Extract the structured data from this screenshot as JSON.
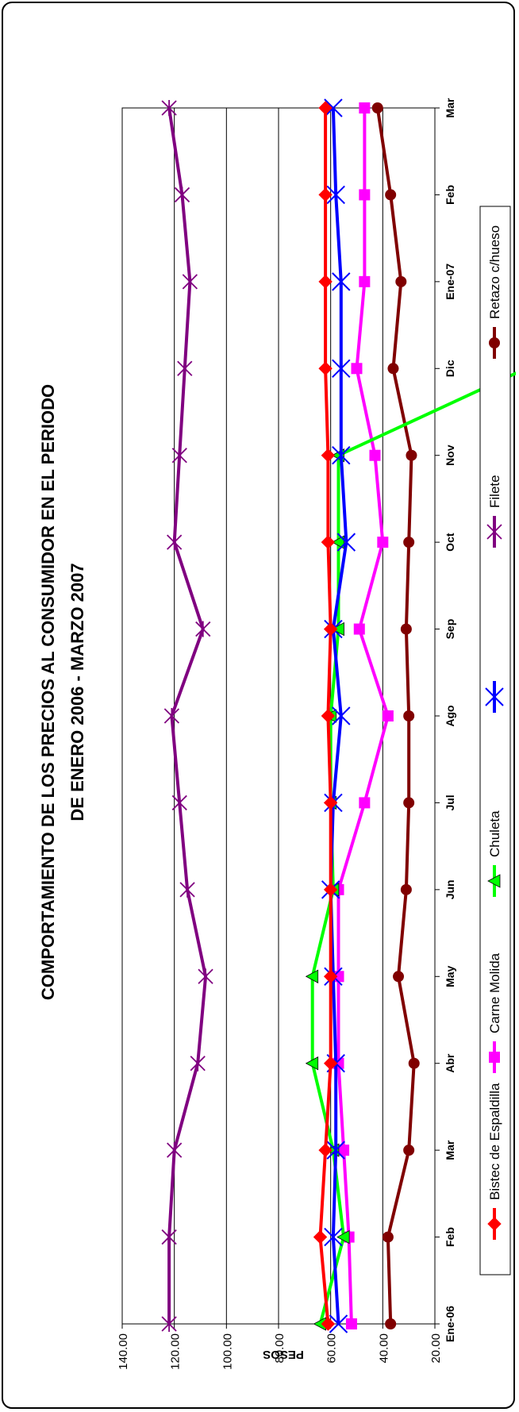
{
  "chart_data": {
    "type": "line",
    "title_line1": "COMPORTAMIENTO DE LOS PRECIOS AL CONSUMIDOR EN EL PERIODO",
    "title_line2": "DE ENERO 2006 - MARZO 2007",
    "ylabel": "PESOS",
    "xlabel": "",
    "ylim": [
      20,
      140
    ],
    "y_ticks": [
      "20.00",
      "40.00",
      "60.00",
      "80.00",
      "100.00",
      "120.00",
      "140.00"
    ],
    "categories": [
      "Ene-06",
      "Feb",
      "Mar",
      "Abr",
      "May",
      "Jun",
      "Jul",
      "Ago",
      "Sep",
      "Oct",
      "Nov",
      "Dic",
      "Ene-07",
      "Feb",
      "Mar"
    ],
    "legend_position": "bottom",
    "series": [
      {
        "name": "Bistec de Espaldilla",
        "color": "#ff0000",
        "marker": "diamond",
        "values": [
          61,
          64,
          62,
          60,
          60,
          60,
          60,
          61,
          60,
          61,
          61,
          62,
          62,
          62,
          62
        ]
      },
      {
        "name": "Carne Molida",
        "color": "#ff00ff",
        "marker": "square",
        "values": [
          52,
          53,
          55,
          57,
          57,
          57,
          47,
          38,
          49,
          40,
          43,
          50,
          47,
          47,
          47
        ]
      },
      {
        "name": "Chuleta",
        "color": "#00ff00",
        "marker": "triangle",
        "values": [
          64,
          55,
          59,
          67,
          67,
          59,
          60,
          60,
          57,
          57,
          57,
          -15,
          null,
          null,
          null
        ]
      },
      {
        "name": "",
        "color": "#0000ff",
        "marker": "x",
        "values": [
          57,
          59,
          58,
          58,
          59,
          60,
          59,
          56,
          59,
          54,
          56,
          56,
          56,
          58,
          59
        ]
      },
      {
        "name": "Filete",
        "color": "#800080",
        "marker": "star",
        "values": [
          122,
          122,
          120,
          111,
          108,
          115,
          118,
          121,
          109,
          120,
          118,
          116,
          114,
          117,
          122
        ]
      },
      {
        "name": "Retazo c/hueso",
        "color": "#800000",
        "marker": "circle",
        "values": [
          37,
          38,
          30,
          28,
          34,
          31,
          30,
          30,
          31,
          30,
          29,
          36,
          33,
          37,
          42
        ]
      }
    ]
  }
}
